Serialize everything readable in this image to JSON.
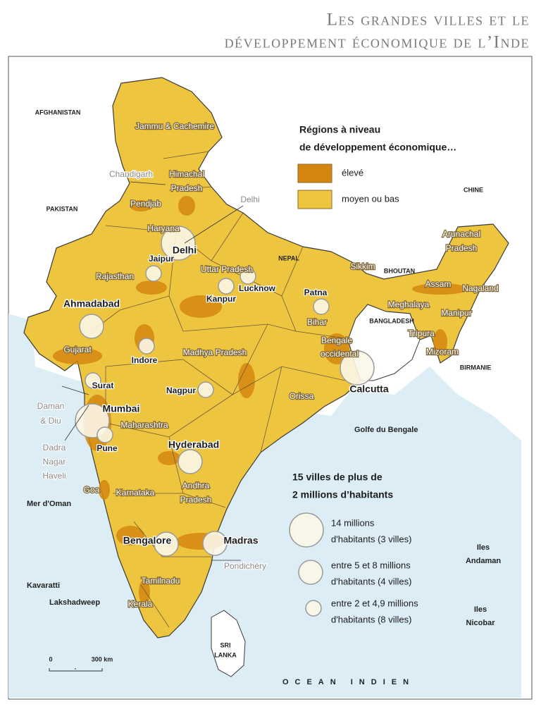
{
  "title": [
    "Les grandes villes et le",
    "développement économique de l’Inde"
  ],
  "countries": [
    "AFGHANISTAN",
    "PAKISTAN",
    "NEPAL",
    "CHINE",
    "BHOUTAN",
    "BANGLADESH",
    "BIRMANIE",
    [
      "SRI",
      "LANKA"
    ]
  ],
  "seas": [
    "Mer d'Oman",
    "Golfe du Bengale",
    "OCEAN INDIEN"
  ],
  "states": [
    "Jammu & Cachemire",
    [
      "Himachal",
      "Pradesh"
    ],
    "Pendjab",
    "Haryana",
    "Rajasthan",
    "Uttar Pradesh",
    "Gujarat",
    "Madhya Pradesh",
    "Bihar",
    [
      "Bengale",
      "occidental"
    ],
    "Sikkim",
    [
      "Arunachal",
      "Pradesh"
    ],
    "Assam",
    "Nagaland",
    "Meghalaya",
    "Manipur",
    "Tripura",
    "Mizoram",
    "Orissa",
    "Maharashtra",
    [
      "Andhra",
      "Pradesh"
    ],
    "Karnataka",
    "Goa",
    "Kerala",
    "Tamilnadu"
  ],
  "territories": [
    "Chandigarh",
    "Delhi",
    [
      "Daman",
      "& Diu"
    ],
    [
      "Dadra",
      "Nagar",
      "Haveli"
    ],
    "Pondichéry"
  ],
  "cities": [
    "Delhi",
    "Mumbai",
    "Calcutta",
    "Ahmadabad",
    "Hyderabad",
    "Bengalore",
    "Madras",
    "Jaipur",
    "Lucknow",
    "Kanpur",
    "Patna",
    "Indore",
    "Surat",
    "Pune",
    "Nagpur"
  ],
  "islands": [
    "Kavaratti",
    "Lakshadweep",
    [
      "Iles",
      "Andaman"
    ],
    [
      "Iles",
      "Nicobar"
    ]
  ],
  "scale": [
    "0",
    "300 km"
  ],
  "legend_development": {
    "title": [
      "Régions à niveau",
      "de développement économique…"
    ],
    "items": [
      {
        "label": "élevé",
        "color": "#d4860f"
      },
      {
        "label": "moyen ou bas",
        "color": "#eec53e"
      }
    ]
  },
  "legend_cities": {
    "title": [
      "15 villes de plus de",
      "2 millions d’habitants"
    ],
    "items": [
      [
        "14 millions",
        "d'habitants (3 villes)"
      ],
      [
        "entre 5 et 8 millions",
        "d'habitants (4 villes)"
      ],
      [
        "entre 2 et 4,9 millions",
        "d'habitants (8 villes)"
      ]
    ]
  }
}
